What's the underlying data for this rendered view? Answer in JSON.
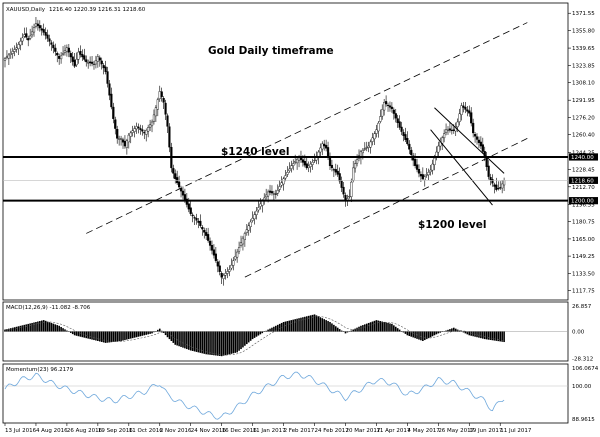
{
  "chart_data": {
    "type": "candlestick",
    "header": {
      "symbol_tf": "XAUUSD,Daily",
      "ohlc": "1216.40 1220.39 1216.31 1218.60"
    },
    "title": "Gold Daily timeframe",
    "annotations": {
      "level_upper": "$1240 level",
      "level_lower": "$1200 level"
    },
    "price_axis": {
      "ylim": [
        1110,
        1380
      ],
      "ticks": [
        "1371.55",
        "1355.80",
        "1339.65",
        "1323.85",
        "1308.10",
        "1291.95",
        "1276.20",
        "1260.40",
        "1244.25",
        "1228.45",
        "1212.70",
        "1196.55",
        "1180.75",
        "1165.00",
        "1149.25",
        "1133.50",
        "1117.75"
      ],
      "labels": {
        "current": "1218.60",
        "upper": "1240.00",
        "lower": "1200.00"
      }
    },
    "levels": {
      "upper": 1240.0,
      "lower": 1200.0,
      "current": 1218.6
    },
    "x_axis": {
      "range": [
        0,
        145
      ],
      "labels": [
        {
          "x": 0,
          "text": "13 Jul 2016"
        },
        {
          "x": 8,
          "text": "4 Aug 2016"
        },
        {
          "x": 16,
          "text": "26 Aug 2016"
        },
        {
          "x": 24,
          "text": "19 Sep 2016"
        },
        {
          "x": 32,
          "text": "11 Oct 2016"
        },
        {
          "x": 40,
          "text": "2 Nov 2016"
        },
        {
          "x": 48,
          "text": "24 Nov 2016"
        },
        {
          "x": 56,
          "text": "16 Dec 2016"
        },
        {
          "x": 64,
          "text": "11 Jan 2017"
        },
        {
          "x": 72,
          "text": "2 Feb 2017"
        },
        {
          "x": 80,
          "text": "24 Feb 2017"
        },
        {
          "x": 88,
          "text": "20 Mar 2017"
        },
        {
          "x": 96,
          "text": "11 Apr 2017"
        },
        {
          "x": 104,
          "text": "4 May 2017"
        },
        {
          "x": 112,
          "text": "26 May 2017"
        },
        {
          "x": 120,
          "text": "19 Jun 2017"
        },
        {
          "x": 128,
          "text": "11 Jul 2017"
        }
      ]
    },
    "price_path": [
      [
        0,
        1330
      ],
      [
        3,
        1340
      ],
      [
        5,
        1352
      ],
      [
        6,
        1347
      ],
      [
        8,
        1362
      ],
      [
        10,
        1354
      ],
      [
        12,
        1343
      ],
      [
        14,
        1330
      ],
      [
        16,
        1340
      ],
      [
        18,
        1323
      ],
      [
        19,
        1336
      ],
      [
        21,
        1327
      ],
      [
        23,
        1325
      ],
      [
        24,
        1332
      ],
      [
        26,
        1318
      ],
      [
        28,
        1275
      ],
      [
        29,
        1257
      ],
      [
        30,
        1257
      ],
      [
        31,
        1250
      ],
      [
        32,
        1260
      ],
      [
        34,
        1268
      ],
      [
        36,
        1262
      ],
      [
        38,
        1272
      ],
      [
        39,
        1285
      ],
      [
        40,
        1300
      ],
      [
        41,
        1290
      ],
      [
        42,
        1268
      ],
      [
        43,
        1230
      ],
      [
        44,
        1220
      ],
      [
        46,
        1205
      ],
      [
        48,
        1188
      ],
      [
        50,
        1180
      ],
      [
        52,
        1168
      ],
      [
        54,
        1150
      ],
      [
        56,
        1130
      ],
      [
        58,
        1137
      ],
      [
        60,
        1153
      ],
      [
        62,
        1170
      ],
      [
        64,
        1184
      ],
      [
        66,
        1197
      ],
      [
        68,
        1208
      ],
      [
        70,
        1206
      ],
      [
        72,
        1220
      ],
      [
        74,
        1232
      ],
      [
        76,
        1240
      ],
      [
        78,
        1230
      ],
      [
        80,
        1237
      ],
      [
        82,
        1252
      ],
      [
        83,
        1248
      ],
      [
        84,
        1232
      ],
      [
        86,
        1224
      ],
      [
        88,
        1200
      ],
      [
        89,
        1204
      ],
      [
        90,
        1230
      ],
      [
        92,
        1245
      ],
      [
        94,
        1250
      ],
      [
        96,
        1265
      ],
      [
        97,
        1277
      ],
      [
        98,
        1290
      ],
      [
        100,
        1284
      ],
      [
        102,
        1267
      ],
      [
        104,
        1252
      ],
      [
        106,
        1232
      ],
      [
        107,
        1225
      ],
      [
        108,
        1220
      ],
      [
        110,
        1228
      ],
      [
        112,
        1250
      ],
      [
        114,
        1265
      ],
      [
        116,
        1264
      ],
      [
        117,
        1272
      ],
      [
        118,
        1287
      ],
      [
        120,
        1280
      ],
      [
        121,
        1262
      ],
      [
        123,
        1250
      ],
      [
        124,
        1240
      ],
      [
        125,
        1222
      ],
      [
        127,
        1210
      ],
      [
        128,
        1212
      ],
      [
        129,
        1218.6
      ]
    ],
    "channels": [
      {
        "style": "dashed",
        "x1": 21,
        "y1": 1170,
        "x2": 135,
        "y2": 1363
      },
      {
        "style": "dashed",
        "x1": 62,
        "y1": 1130,
        "x2": 135,
        "y2": 1257
      },
      {
        "style": "solid",
        "x1": 111,
        "y1": 1285,
        "x2": 129,
        "y2": 1225
      },
      {
        "style": "solid",
        "x1": 110,
        "y1": 1265,
        "x2": 126,
        "y2": 1196
      }
    ],
    "macd": {
      "label": "MACD(12,26,9) -11.082 -8.706",
      "ylim": [
        -30,
        30
      ],
      "ticks": [
        "26.857",
        "0.00",
        "-28.312"
      ],
      "path": [
        [
          0,
          2
        ],
        [
          6,
          8
        ],
        [
          10,
          12
        ],
        [
          14,
          6
        ],
        [
          18,
          -4
        ],
        [
          22,
          -8
        ],
        [
          26,
          -12
        ],
        [
          30,
          -10
        ],
        [
          34,
          -6
        ],
        [
          38,
          -2
        ],
        [
          40,
          3
        ],
        [
          42,
          -6
        ],
        [
          44,
          -14
        ],
        [
          48,
          -20
        ],
        [
          52,
          -24
        ],
        [
          56,
          -26
        ],
        [
          60,
          -22
        ],
        [
          64,
          -8
        ],
        [
          68,
          2
        ],
        [
          72,
          10
        ],
        [
          76,
          14
        ],
        [
          80,
          18
        ],
        [
          84,
          10
        ],
        [
          88,
          -2
        ],
        [
          92,
          6
        ],
        [
          96,
          12
        ],
        [
          100,
          8
        ],
        [
          104,
          -4
        ],
        [
          108,
          -10
        ],
        [
          112,
          -2
        ],
        [
          116,
          4
        ],
        [
          120,
          -4
        ],
        [
          124,
          -8
        ],
        [
          129,
          -11.08
        ]
      ]
    },
    "momentum": {
      "label": "Momentum(23) 96.2179",
      "ylim": [
        88,
        107
      ],
      "ticks": [
        "106.0674",
        "100.00",
        "88.9615"
      ],
      "path": [
        [
          0,
          99
        ],
        [
          4,
          102
        ],
        [
          8,
          103.5
        ],
        [
          12,
          101
        ],
        [
          16,
          99
        ],
        [
          20,
          97.5
        ],
        [
          24,
          96
        ],
        [
          28,
          95
        ],
        [
          32,
          96.5
        ],
        [
          36,
          98
        ],
        [
          40,
          101
        ],
        [
          42,
          97
        ],
        [
          46,
          94
        ],
        [
          50,
          92
        ],
        [
          54,
          90
        ],
        [
          56,
          89.5
        ],
        [
          60,
          93
        ],
        [
          64,
          97
        ],
        [
          68,
          100
        ],
        [
          72,
          103
        ],
        [
          76,
          104
        ],
        [
          80,
          102
        ],
        [
          84,
          99
        ],
        [
          88,
          96
        ],
        [
          92,
          99
        ],
        [
          96,
          102
        ],
        [
          100,
          101
        ],
        [
          104,
          97
        ],
        [
          108,
          99
        ],
        [
          112,
          102
        ],
        [
          116,
          101
        ],
        [
          120,
          98
        ],
        [
          124,
          95
        ],
        [
          126,
          92
        ],
        [
          129,
          96.2
        ]
      ]
    },
    "colors": {
      "candle": "#000000",
      "background": "#ffffff",
      "momentum": "#6fa8dc",
      "grid": "#c0c0c0"
    }
  }
}
